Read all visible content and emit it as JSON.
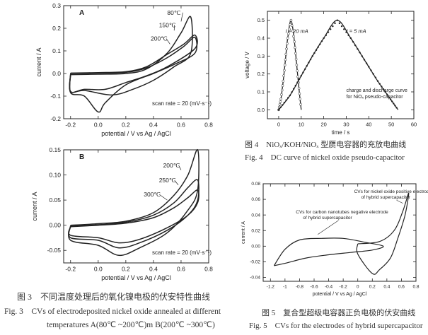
{
  "fig3": {
    "caption_cn": "图 3　不同温度处理后的氧化镍电极的伏安特性曲线",
    "caption_en_1": "Fig. 3　CVs of electrodeposited nickel oxide annealed at different",
    "caption_en_2": "temperatures A(80℃ ~200℃)m B(200℃ ~300℃)"
  },
  "fig4": {
    "caption_cn": "图 4　NiOₓ/KOH/NiOₓ 型赝电容器的充放电曲线",
    "caption_en": "Fig. 4　DC curve of nickel oxide pseudo-capacitor"
  },
  "fig5": {
    "caption_cn": "图 5　复合型超级电容器正负电极的伏安曲线",
    "caption_en": "Fig. 5　CVs for the electrodes of hybrid supercapacitor"
  },
  "chart_data": [
    {
      "id": "A",
      "type": "line",
      "panel_label": "A",
      "xlabel": "potential / V vs Ag / AgCl",
      "ylabel": "current / A",
      "xlim": [
        -0.25,
        0.8
      ],
      "ylim": [
        -0.2,
        0.3
      ],
      "xticks": [
        -0.2,
        0.0,
        0.2,
        0.4,
        0.6,
        0.8
      ],
      "yticks": [
        -0.2,
        -0.1,
        0.0,
        0.1,
        0.2,
        0.3
      ],
      "annotation": "scan rate = 20 (mV·s⁻¹)",
      "series": [
        {
          "name": "80℃",
          "label_pos": [
            0.5,
            0.26
          ],
          "tip": [
            0.6,
            0.23
          ],
          "upper": [
            [
              -0.2,
              -0.005
            ],
            [
              0.0,
              -0.003
            ],
            [
              0.2,
              0.0
            ],
            [
              0.35,
              0.02
            ],
            [
              0.5,
              0.09
            ],
            [
              0.6,
              0.18
            ],
            [
              0.67,
              0.25
            ]
          ],
          "lower": [
            [
              -0.2,
              -0.08
            ],
            [
              -0.1,
              -0.075
            ],
            [
              0.1,
              -0.095
            ],
            [
              0.25,
              -0.07
            ],
            [
              0.4,
              -0.03
            ],
            [
              0.55,
              0.03
            ],
            [
              0.67,
              0.09
            ]
          ]
        },
        {
          "name": "150℃",
          "label_pos": [
            0.44,
            0.205
          ],
          "tip": [
            0.55,
            0.19
          ],
          "upper": [
            [
              -0.2,
              0.0
            ],
            [
              0.0,
              0.002
            ],
            [
              0.2,
              0.005
            ],
            [
              0.35,
              0.025
            ],
            [
              0.5,
              0.07
            ],
            [
              0.62,
              0.12
            ],
            [
              0.7,
              0.16
            ]
          ],
          "lower": [
            [
              -0.2,
              -0.085
            ],
            [
              -0.1,
              -0.1
            ],
            [
              0.0,
              -0.17
            ],
            [
              0.05,
              -0.13
            ],
            [
              0.2,
              -0.05
            ],
            [
              0.4,
              0.0
            ],
            [
              0.55,
              0.04
            ],
            [
              0.7,
              0.09
            ]
          ]
        },
        {
          "name": "200℃",
          "label_pos": [
            0.38,
            0.145
          ],
          "tip": [
            0.52,
            0.13
          ],
          "upper": [
            [
              -0.2,
              0.002
            ],
            [
              0.0,
              0.004
            ],
            [
              0.2,
              0.008
            ],
            [
              0.35,
              0.03
            ],
            [
              0.5,
              0.085
            ],
            [
              0.62,
              0.13
            ],
            [
              0.7,
              0.17
            ]
          ],
          "lower": [
            [
              -0.2,
              -0.08
            ],
            [
              -0.1,
              -0.07
            ],
            [
              0.05,
              -0.07
            ],
            [
              0.2,
              -0.04
            ],
            [
              0.35,
              -0.01
            ],
            [
              0.5,
              0.03
            ],
            [
              0.7,
              0.11
            ]
          ]
        }
      ]
    },
    {
      "id": "B",
      "type": "line",
      "panel_label": "B",
      "xlabel": "potential / V vs Ag / AgCl",
      "ylabel": "current / A",
      "xlim": [
        -0.25,
        0.8
      ],
      "ylim": [
        -0.075,
        0.15
      ],
      "xticks": [
        -0.2,
        0.0,
        0.2,
        0.4,
        0.6,
        0.8
      ],
      "yticks": [
        -0.05,
        0.0,
        0.05,
        0.1,
        0.15
      ],
      "annotation": "scan rate = 20 (mV·s⁻¹)",
      "series": [
        {
          "name": "200℃",
          "label_pos": [
            0.47,
            0.115
          ],
          "tip": [
            0.6,
            0.11
          ],
          "upper": [
            [
              -0.2,
              0.0
            ],
            [
              0.0,
              0.003
            ],
            [
              0.2,
              0.008
            ],
            [
              0.4,
              0.025
            ],
            [
              0.55,
              0.06
            ],
            [
              0.65,
              0.1
            ],
            [
              0.72,
              0.15
            ]
          ],
          "lower": [
            [
              -0.2,
              -0.03
            ],
            [
              0.0,
              -0.04
            ],
            [
              0.15,
              -0.06
            ],
            [
              0.3,
              -0.045
            ],
            [
              0.5,
              -0.015
            ],
            [
              0.65,
              0.03
            ],
            [
              0.72,
              0.07
            ]
          ]
        },
        {
          "name": "250℃",
          "label_pos": [
            0.44,
            0.085
          ],
          "tip": [
            0.58,
            0.08
          ],
          "upper": [
            [
              -0.2,
              -0.002
            ],
            [
              0.0,
              0.001
            ],
            [
              0.2,
              0.006
            ],
            [
              0.4,
              0.02
            ],
            [
              0.55,
              0.045
            ],
            [
              0.65,
              0.075
            ],
            [
              0.72,
              0.09
            ]
          ],
          "lower": [
            [
              -0.2,
              -0.025
            ],
            [
              0.0,
              -0.03
            ],
            [
              0.15,
              -0.045
            ],
            [
              0.3,
              -0.035
            ],
            [
              0.5,
              -0.01
            ],
            [
              0.65,
              0.02
            ],
            [
              0.72,
              0.05
            ]
          ]
        },
        {
          "name": "300℃",
          "label_pos": [
            0.33,
            0.057
          ],
          "tip": [
            0.5,
            0.05
          ],
          "upper": [
            [
              -0.2,
              -0.003
            ],
            [
              0.0,
              0.0
            ],
            [
              0.2,
              0.004
            ],
            [
              0.4,
              0.015
            ],
            [
              0.55,
              0.035
            ],
            [
              0.65,
              0.055
            ],
            [
              0.72,
              0.07
            ]
          ],
          "lower": [
            [
              -0.2,
              -0.02
            ],
            [
              0.0,
              -0.025
            ],
            [
              0.15,
              -0.035
            ],
            [
              0.3,
              -0.028
            ],
            [
              0.5,
              -0.005
            ],
            [
              0.65,
              0.02
            ],
            [
              0.72,
              0.045
            ]
          ]
        }
      ]
    },
    {
      "id": "fig4",
      "type": "line",
      "xlabel": "time / s",
      "ylabel": "voltage / V",
      "xlim": [
        -5,
        60
      ],
      "ylim": [
        -0.05,
        0.55
      ],
      "xticks": [
        0,
        10,
        20,
        30,
        40,
        50,
        60
      ],
      "yticks": [
        0.0,
        0.1,
        0.2,
        0.3,
        0.4,
        0.5
      ],
      "annotation_1": "charge and discharge curve",
      "annotation_2": "for NiOₓ pseudo-capacitor",
      "series": [
        {
          "name": "I = 20 mA",
          "label_pos": [
            3,
            0.43
          ],
          "points": [
            [
              0,
              0.0
            ],
            [
              1,
              0.06
            ],
            [
              2,
              0.16
            ],
            [
              3,
              0.28
            ],
            [
              4,
              0.4
            ],
            [
              5.5,
              0.5
            ],
            [
              7,
              0.38
            ],
            [
              8,
              0.25
            ],
            [
              9,
              0.12
            ],
            [
              10,
              0.0
            ]
          ]
        },
        {
          "name": "I = 5 mA",
          "label_pos": [
            30,
            0.43
          ],
          "points": [
            [
              0,
              0.0
            ],
            [
              5,
              0.08
            ],
            [
              10,
              0.19
            ],
            [
              15,
              0.3
            ],
            [
              20,
              0.4
            ],
            [
              26,
              0.5
            ],
            [
              32,
              0.4
            ],
            [
              38,
              0.28
            ],
            [
              44,
              0.16
            ],
            [
              49,
              0.07
            ],
            [
              53,
              0.0
            ]
          ]
        }
      ]
    },
    {
      "id": "fig5",
      "type": "line",
      "xlabel": "potential / V vs Ag / AgCl",
      "ylabel": "current / A",
      "xlim": [
        -1.3,
        0.8
      ],
      "ylim": [
        -0.045,
        0.08
      ],
      "xticks": [
        -1.2,
        -1.0,
        -0.8,
        -0.6,
        -0.4,
        -0.2,
        0.0,
        0.2,
        0.4,
        0.6,
        0.8
      ],
      "yticks": [
        -0.04,
        -0.02,
        0.0,
        0.02,
        0.04,
        0.06,
        0.08
      ],
      "series": [
        {
          "name": "CVs for nickel oxide positive electrode of hybrid supercapacitor",
          "name_line1": "CVs for nickel oxide positive electrode",
          "name_line2": "of hybrid supercapacitor",
          "label_pos": [
            -0.05,
            0.068
          ],
          "tip": [
            0.62,
            0.055
          ],
          "points": [
            [
              0.0,
              0.003
            ],
            [
              0.3,
              0.006
            ],
            [
              0.5,
              0.02
            ],
            [
              0.62,
              0.045
            ],
            [
              0.7,
              0.068
            ],
            [
              0.65,
              0.04
            ],
            [
              0.55,
              0.01
            ],
            [
              0.45,
              -0.015
            ],
            [
              0.3,
              -0.03
            ],
            [
              0.2,
              -0.035
            ],
            [
              0.0,
              -0.01
            ],
            [
              0.0,
              0.003
            ]
          ]
        },
        {
          "name": "CVs for carbon nanotubes negative electrode of hybrid supercapacitor",
          "name_line1": "CVs for carbon nanotubes negative electrode",
          "name_line2": "of hybrid supercapacitor",
          "label_pos": [
            -0.85,
            0.042
          ],
          "tip": [
            -0.55,
            0.015
          ],
          "points": [
            [
              -1.15,
              -0.025
            ],
            [
              -1.0,
              -0.004
            ],
            [
              -0.8,
              0.008
            ],
            [
              -0.5,
              0.01
            ],
            [
              -0.2,
              0.01
            ],
            [
              0.1,
              0.005
            ],
            [
              0.35,
              0.0
            ],
            [
              0.2,
              -0.005
            ],
            [
              -0.1,
              -0.008
            ],
            [
              -0.4,
              -0.011
            ],
            [
              -0.7,
              -0.015
            ],
            [
              -1.0,
              -0.022
            ],
            [
              -1.15,
              -0.025
            ]
          ]
        }
      ]
    }
  ]
}
